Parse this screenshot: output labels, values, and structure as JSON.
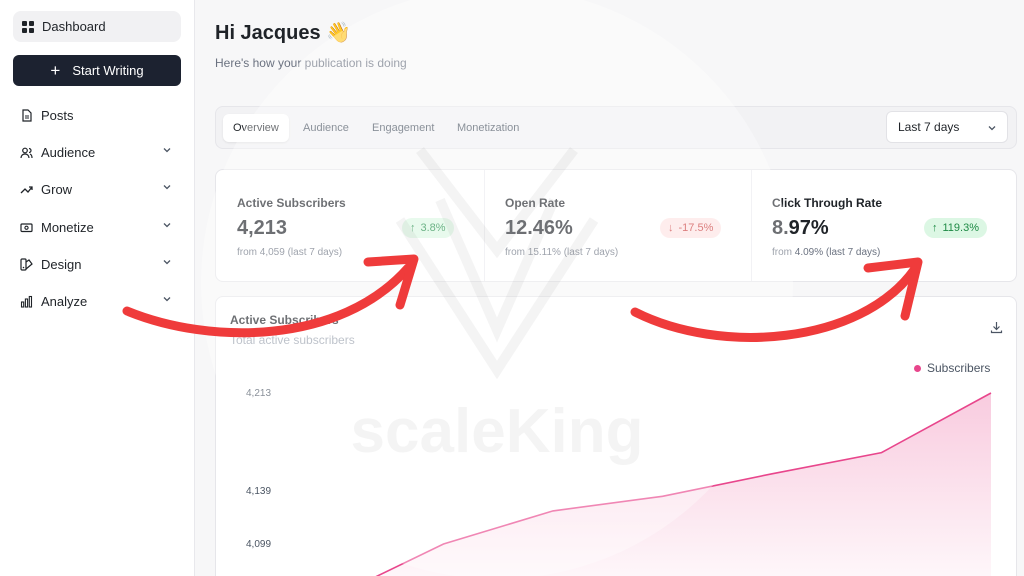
{
  "sidebar": {
    "dashboard_label": "Dashboard",
    "start_writing_label": "Start Writing",
    "items": [
      {
        "label": "Posts",
        "icon": "document-icon"
      },
      {
        "label": "Audience",
        "icon": "users-icon"
      },
      {
        "label": "Grow",
        "icon": "trend-up-icon"
      },
      {
        "label": "Monetize",
        "icon": "money-icon"
      },
      {
        "label": "Design",
        "icon": "palette-icon"
      },
      {
        "label": "Analyze",
        "icon": "bar-chart-icon"
      }
    ]
  },
  "header": {
    "greeting": "Hi Jacques 👋",
    "subtitle": "Here's how your publication is doing"
  },
  "tabs": [
    {
      "label": "Overview",
      "active": true
    },
    {
      "label": "Audience",
      "active": false
    },
    {
      "label": "Engagement",
      "active": false
    },
    {
      "label": "Monetization",
      "active": false
    }
  ],
  "range_select": {
    "value": "Last 7 days"
  },
  "stats": [
    {
      "label": "Active Subscribers",
      "value": "4,213",
      "change": "3.8%",
      "direction": "up",
      "sub": "from 4,059 (last 7 days)"
    },
    {
      "label": "Open Rate",
      "value": "12.46%",
      "change": "-17.5%",
      "direction": "down",
      "sub": "from 15.11% (last 7 days)"
    },
    {
      "label": "Click Through Rate",
      "value": "8.97%",
      "change": "119.3%",
      "direction": "up",
      "sub": "from 4.09% (last 7 days)"
    }
  ],
  "chart": {
    "title": "Active Subscribers",
    "subtitle": "Total active subscribers",
    "legend": "Subscribers",
    "color": "#e8468c"
  },
  "chart_data": {
    "type": "area",
    "title": "Active Subscribers",
    "subtitle": "Total active subscribers",
    "y_ticks": [
      "4,213",
      "4,139",
      "4,099"
    ],
    "ylim": [
      4059,
      4213
    ],
    "series": [
      {
        "name": "Subscribers",
        "values": [
          4059,
          4099,
          4124,
          4135,
          4152,
          4168,
          4213
        ]
      }
    ]
  },
  "overlay": {
    "watermark_text": "scaleKing",
    "arrow_color": "#ef3b3b"
  }
}
